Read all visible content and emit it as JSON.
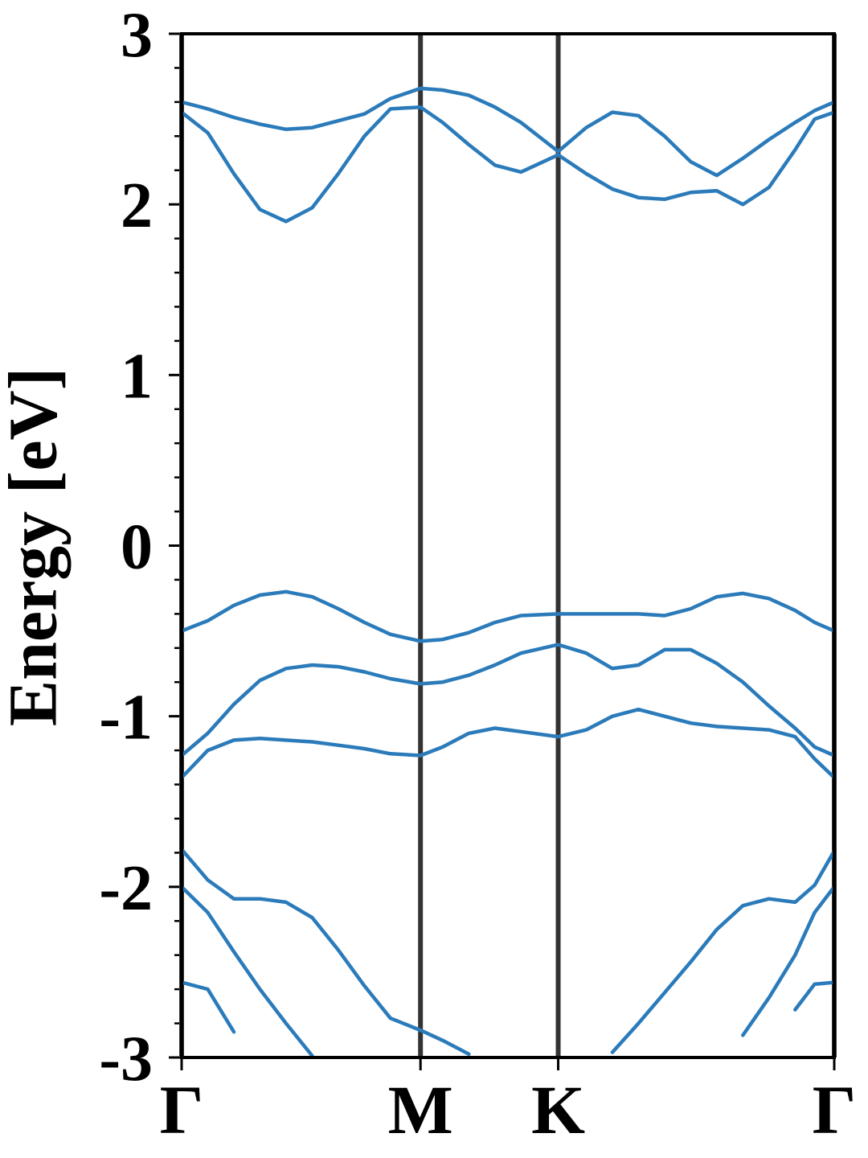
{
  "chart_data": {
    "type": "line",
    "ylabel": "Energy [eV]",
    "x": [
      0,
      0.04,
      0.08,
      0.12,
      0.16,
      0.2,
      0.24,
      0.28,
      0.32,
      0.366,
      0.4,
      0.44,
      0.48,
      0.52,
      0.577,
      0.62,
      0.66,
      0.7,
      0.74,
      0.78,
      0.82,
      0.86,
      0.9,
      0.94,
      0.97,
      1
    ],
    "xlim": [
      0,
      1
    ],
    "xticks": [
      {
        "value": 0,
        "label": "Γ"
      },
      {
        "value": 0.366,
        "label": "M"
      },
      {
        "value": 0.577,
        "label": "K"
      },
      {
        "value": 1,
        "label": "Γ"
      }
    ],
    "ylim": [
      -3,
      3
    ],
    "yticks": [
      -3,
      -2,
      -1,
      0,
      1,
      2,
      3
    ],
    "yticks_minor": [
      -2.8,
      -2.6,
      -2.4,
      -2.2,
      -1.8,
      -1.6,
      -1.4,
      -1.2,
      -0.8,
      -0.6,
      -0.4,
      -0.2,
      0.2,
      0.4,
      0.6,
      0.8,
      1.2,
      1.4,
      1.6,
      1.8,
      2.2,
      2.4,
      2.6,
      2.8
    ],
    "series": [
      {
        "color": "#2b7bba",
        "values": [
          2.6,
          2.56,
          2.51,
          2.47,
          2.44,
          2.45,
          2.49,
          2.53,
          2.62,
          2.68,
          2.67,
          2.64,
          2.57,
          2.48,
          2.31,
          2.45,
          2.54,
          2.52,
          2.4,
          2.25,
          2.17,
          2.27,
          2.38,
          2.48,
          2.55,
          2.6
        ]
      },
      {
        "color": "#2b7bba",
        "values": [
          2.54,
          2.42,
          2.18,
          1.97,
          1.9,
          1.98,
          2.18,
          2.4,
          2.56,
          2.57,
          2.48,
          2.35,
          2.23,
          2.19,
          2.29,
          2.18,
          2.09,
          2.04,
          2.03,
          2.07,
          2.08,
          2.0,
          2.1,
          2.32,
          2.5,
          2.54
        ]
      },
      {
        "color": "#2b7bba",
        "values": [
          -0.5,
          -0.44,
          -0.35,
          -0.29,
          -0.27,
          -0.3,
          -0.37,
          -0.45,
          -0.52,
          -0.56,
          -0.55,
          -0.51,
          -0.45,
          -0.41,
          -0.4,
          -0.4,
          -0.4,
          -0.4,
          -0.41,
          -0.37,
          -0.3,
          -0.28,
          -0.31,
          -0.38,
          -0.45,
          -0.5
        ]
      },
      {
        "color": "#2b7bba",
        "values": [
          -1.23,
          -1.1,
          -0.93,
          -0.79,
          -0.72,
          -0.7,
          -0.71,
          -0.74,
          -0.78,
          -0.81,
          -0.8,
          -0.76,
          -0.7,
          -0.63,
          -0.58,
          -0.63,
          -0.72,
          -0.7,
          -0.61,
          -0.61,
          -0.69,
          -0.8,
          -0.94,
          -1.07,
          -1.18,
          -1.23
        ]
      },
      {
        "color": "#2b7bba",
        "values": [
          -1.36,
          -1.2,
          -1.14,
          -1.13,
          -1.14,
          -1.15,
          -1.17,
          -1.19,
          -1.22,
          -1.23,
          -1.18,
          -1.1,
          -1.07,
          -1.09,
          -1.12,
          -1.08,
          -1.0,
          -0.96,
          -1.0,
          -1.04,
          -1.06,
          -1.07,
          -1.08,
          -1.12,
          -1.25,
          -1.36
        ]
      },
      {
        "color": "#2b7bba",
        "values": [
          -1.78,
          -1.96,
          -2.07,
          -2.07,
          -2.09,
          -2.18,
          -2.37,
          -2.58,
          -2.77,
          -2.84,
          -2.9,
          -2.98,
          null,
          null,
          null,
          null,
          -2.97,
          -2.8,
          -2.62,
          -2.44,
          -2.25,
          -2.11,
          -2.07,
          -2.09,
          -1.99,
          -1.79
        ]
      },
      {
        "color": "#2b7bba",
        "values": [
          -2.0,
          -2.15,
          -2.38,
          -2.6,
          -2.8,
          -2.99,
          null,
          null,
          null,
          null,
          null,
          null,
          null,
          null,
          null,
          null,
          null,
          null,
          null,
          null,
          null,
          -2.87,
          -2.65,
          -2.4,
          -2.15,
          -2.0
        ]
      },
      {
        "color": "#2b7bba",
        "values": [
          -2.56,
          -2.6,
          -2.85,
          null,
          null,
          null,
          null,
          null,
          null,
          null,
          null,
          null,
          null,
          null,
          null,
          null,
          null,
          null,
          null,
          null,
          null,
          null,
          null,
          -2.72,
          -2.57,
          -2.56
        ]
      }
    ]
  }
}
